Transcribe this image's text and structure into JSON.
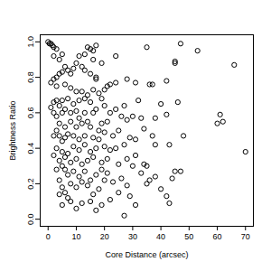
{
  "chart_data": {
    "type": "scatter",
    "x_label": "Core Distance (arcsec)",
    "y_label": "Brightness Ratio",
    "marker": "open_circle",
    "color": "#000000",
    "xlim": [
      -2.8,
      72.8
    ],
    "ylim": [
      -0.04,
      1.04
    ],
    "xticks": [
      0,
      10,
      20,
      30,
      40,
      50,
      60,
      70
    ],
    "yticks": [
      {
        "value": 0,
        "label": "0.0"
      },
      0.2,
      0.4,
      0.6,
      0.8,
      {
        "value": 1,
        "label": "1.0"
      }
    ],
    "x": [
      0,
      0.5,
      1,
      1.5,
      2,
      3,
      2,
      4,
      5,
      14,
      15,
      16,
      17,
      13,
      11,
      16,
      24,
      19,
      35,
      47,
      53,
      66,
      45,
      45,
      42,
      37,
      36,
      28,
      31,
      24,
      22,
      21,
      20,
      17,
      17,
      15,
      13,
      12,
      10,
      9,
      8,
      7,
      6,
      5,
      4,
      3,
      2,
      1,
      3,
      6,
      8,
      10,
      12,
      14,
      16,
      18,
      19,
      15,
      13,
      11,
      9,
      7,
      5,
      4,
      3,
      2,
      1,
      2,
      3,
      5,
      6,
      8,
      10,
      11,
      13,
      16,
      17,
      20,
      22,
      26,
      28,
      30,
      33,
      38,
      42,
      60,
      61,
      62,
      46,
      40,
      32,
      27,
      24,
      21,
      19,
      18,
      15,
      14,
      12,
      10,
      8,
      6,
      4,
      3,
      2,
      4,
      5,
      6,
      7,
      9,
      11,
      13,
      16,
      18,
      20,
      23,
      25,
      29,
      31,
      34,
      37,
      48,
      43,
      27,
      24,
      22,
      20,
      17,
      15,
      13,
      11,
      9,
      7,
      5,
      3,
      2,
      4,
      6,
      8,
      10,
      12,
      14,
      16,
      19,
      21,
      25,
      34,
      35,
      31,
      47,
      45,
      70,
      38,
      36,
      40,
      42,
      43,
      35,
      28,
      26,
      23,
      21,
      19,
      17,
      15,
      13,
      11,
      9,
      7,
      6,
      5,
      3,
      4,
      5,
      6,
      7,
      4,
      8,
      10,
      12,
      14,
      16,
      18,
      20,
      22,
      25,
      27,
      29,
      31,
      10,
      12,
      15,
      17,
      19,
      8,
      5,
      44,
      38,
      30,
      33,
      28
    ],
    "values": [
      1.0,
      0.99,
      0.99,
      0.98,
      0.97,
      0.96,
      0.92,
      0.9,
      0.93,
      0.97,
      0.96,
      0.95,
      0.98,
      0.93,
      0.92,
      0.9,
      0.92,
      0.88,
      0.97,
      0.99,
      0.95,
      0.87,
      0.89,
      0.88,
      0.78,
      0.76,
      0.76,
      0.79,
      0.77,
      0.77,
      0.76,
      0.75,
      0.73,
      0.8,
      0.79,
      0.82,
      0.84,
      0.86,
      0.88,
      0.85,
      0.82,
      0.84,
      0.86,
      0.83,
      0.82,
      0.8,
      0.79,
      0.77,
      0.75,
      0.76,
      0.74,
      0.72,
      0.72,
      0.7,
      0.73,
      0.71,
      0.68,
      0.66,
      0.68,
      0.67,
      0.65,
      0.68,
      0.67,
      0.64,
      0.67,
      0.66,
      0.63,
      0.6,
      0.58,
      0.6,
      0.62,
      0.6,
      0.61,
      0.57,
      0.6,
      0.6,
      0.62,
      0.64,
      0.6,
      0.58,
      0.56,
      0.58,
      0.57,
      0.57,
      0.59,
      0.54,
      0.59,
      0.55,
      0.66,
      0.65,
      0.67,
      0.64,
      0.62,
      0.55,
      0.54,
      0.5,
      0.52,
      0.55,
      0.54,
      0.52,
      0.55,
      0.52,
      0.54,
      0.5,
      0.47,
      0.47,
      0.44,
      0.46,
      0.48,
      0.47,
      0.45,
      0.47,
      0.46,
      0.45,
      0.49,
      0.47,
      0.5,
      0.46,
      0.45,
      0.51,
      0.47,
      0.47,
      0.42,
      0.42,
      0.4,
      0.39,
      0.41,
      0.4,
      0.38,
      0.42,
      0.39,
      0.41,
      0.37,
      0.38,
      0.4,
      0.36,
      0.33,
      0.35,
      0.32,
      0.34,
      0.31,
      0.33,
      0.35,
      0.32,
      0.34,
      0.31,
      0.31,
      0.3,
      0.36,
      0.27,
      0.27,
      0.38,
      0.24,
      0.22,
      0.17,
      0.13,
      0.09,
      0.2,
      0.19,
      0.23,
      0.21,
      0.26,
      0.28,
      0.25,
      0.22,
      0.27,
      0.24,
      0.27,
      0.25,
      0.28,
      0.3,
      0.28,
      0.22,
      0.18,
      0.15,
      0.12,
      0.14,
      0.2,
      0.18,
      0.21,
      0.19,
      0.14,
      0.17,
      0.22,
      0.11,
      0.15,
      0.02,
      0.13,
      0.08,
      0.06,
      0.09,
      0.1,
      0.05,
      0.08,
      0.1,
      0.08,
      0.23,
      0.42,
      0.3,
      0.26,
      0.34
    ]
  }
}
